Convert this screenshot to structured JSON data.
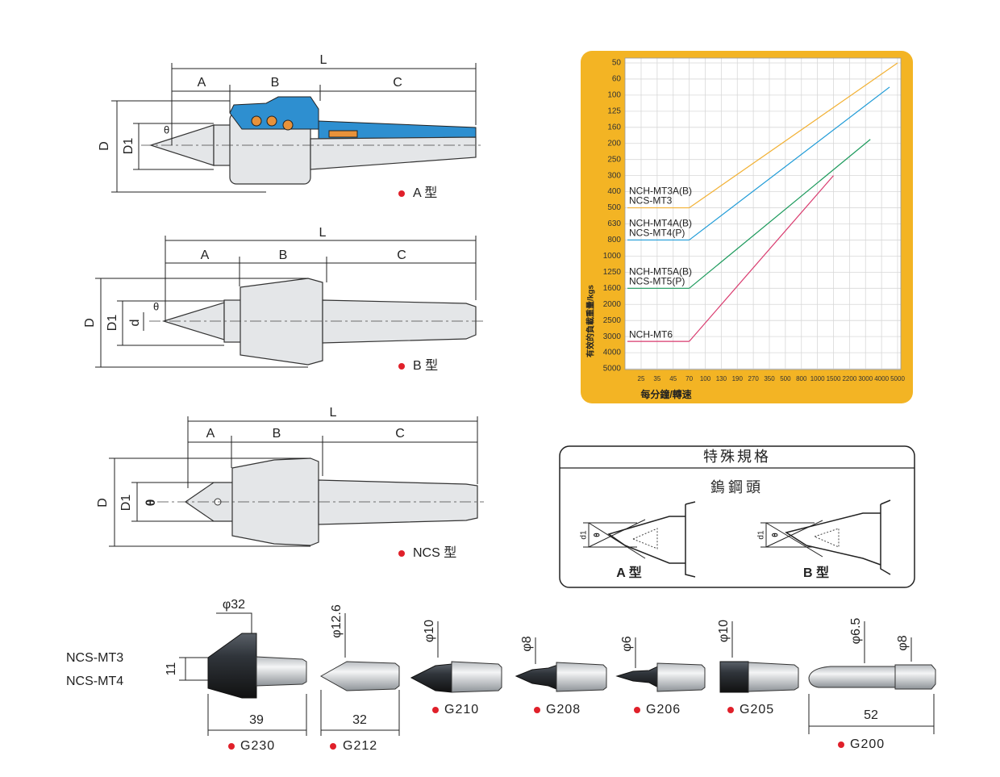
{
  "drawings": [
    {
      "label": "A 型",
      "L": "L",
      "A": "A",
      "B": "B",
      "C": "C",
      "D": "D",
      "D1": "D1",
      "theta": "θ"
    },
    {
      "label": "B 型",
      "L": "L",
      "A": "A",
      "B": "B",
      "C": "C",
      "D": "D",
      "D1": "D1",
      "d": "d",
      "theta": "θ"
    },
    {
      "label": "NCS 型",
      "L": "L",
      "A": "A",
      "B": "B",
      "C": "C",
      "D": "D",
      "D1": "D1",
      "theta": "θ"
    }
  ],
  "chart_data": {
    "type": "line",
    "y_title": "有效的負載重量/kgs",
    "x_title": "每分鐘/轉速",
    "yticks": [
      50,
      60,
      100,
      125,
      160,
      200,
      250,
      300,
      400,
      500,
      630,
      800,
      1000,
      1250,
      1600,
      2000,
      2500,
      3000,
      4000,
      5000
    ],
    "xticks": [
      25,
      35,
      45,
      70,
      100,
      130,
      190,
      270,
      350,
      500,
      800,
      1000,
      1500,
      2200,
      3000,
      4000,
      5000
    ],
    "grid": true,
    "series": [
      {
        "name": "NCH-MT3A(B)",
        "alias": "NCS-MT3",
        "color": "#f2b134",
        "x": [
          70,
          5000
        ],
        "values": [
          500,
          50
        ]
      },
      {
        "name": "NCH-MT4A(B)",
        "alias": "NCS-MT4(P)",
        "color": "#1f9bd7",
        "x": [
          70,
          4500
        ],
        "values": [
          800,
          80
        ]
      },
      {
        "name": "NCH-MT5A(B)",
        "alias": "NCS-MT5(P)",
        "color": "#1c9a5c",
        "x": [
          70,
          3300
        ],
        "values": [
          1600,
          190
        ]
      },
      {
        "name": "NCH-MT6",
        "color": "#d93a6e",
        "x": [
          70,
          1500
        ],
        "values": [
          3300,
          300
        ]
      }
    ]
  },
  "special": {
    "title": "特殊規格",
    "subtitle": "鎢鋼頭",
    "a_label": "A 型",
    "b_label": "B 型",
    "d1": "d1",
    "theta": "θ"
  },
  "models": [
    "NCS-MT3",
    "NCS-MT4"
  ],
  "tips": [
    {
      "code": "G230",
      "dia": "φ32",
      "height": "11",
      "length": "39"
    },
    {
      "code": "G212",
      "dia": "φ12.6",
      "length": "32"
    },
    {
      "code": "G210",
      "dia": "φ10"
    },
    {
      "code": "G208",
      "dia": "φ8"
    },
    {
      "code": "G206",
      "dia": "φ6"
    },
    {
      "code": "G205",
      "dia": "φ10"
    },
    {
      "code": "G200",
      "dia": "φ6.5",
      "dia2": "φ8",
      "length": "52"
    }
  ]
}
